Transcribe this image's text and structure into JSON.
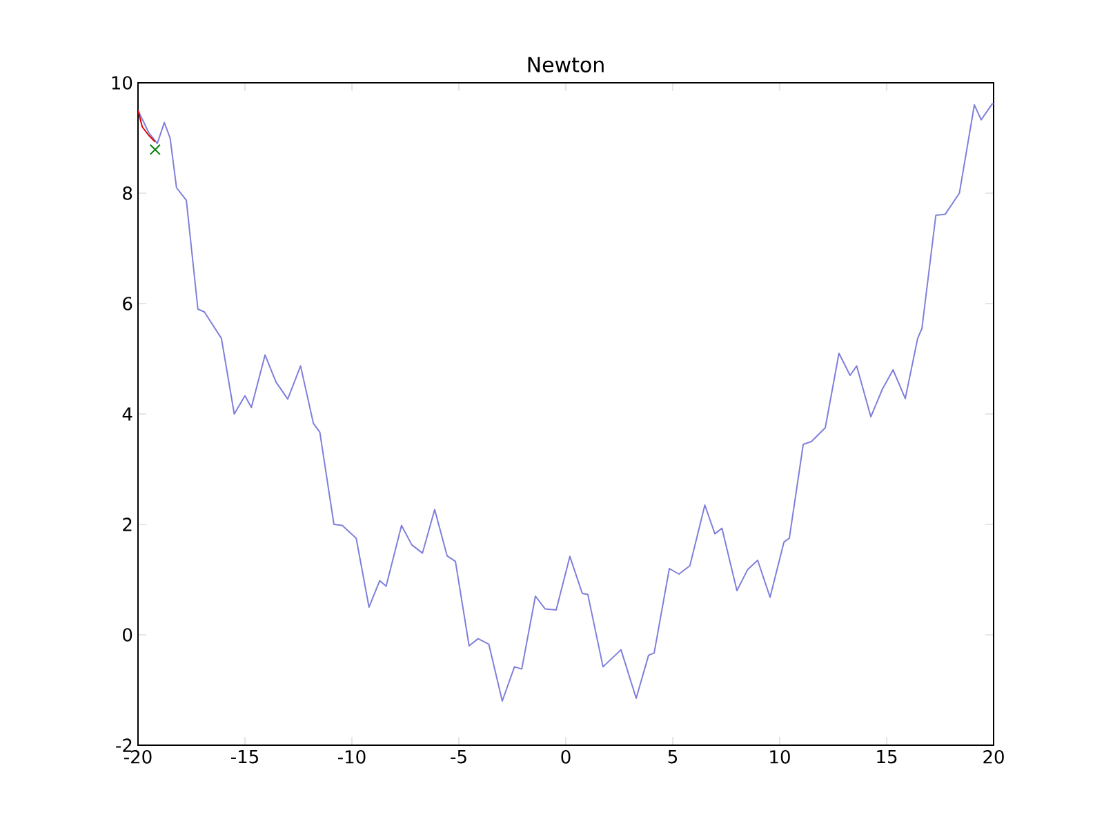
{
  "chart_data": {
    "type": "line",
    "title": "Newton",
    "xlim": [
      -20,
      20
    ],
    "ylim": [
      -2,
      10
    ],
    "xticks": [
      -20,
      -15,
      -10,
      -5,
      0,
      5,
      10,
      15,
      20
    ],
    "yticks": [
      -2,
      0,
      2,
      4,
      6,
      8,
      10
    ],
    "marker": "none",
    "line_style": "solid",
    "series": [
      {
        "color": "#7f7fdb",
        "x": [
          -20,
          -19.5,
          -19.1,
          -18.77,
          -18.5,
          -18.2,
          -17.74,
          -17.2,
          -16.9,
          -16.1,
          -15.5,
          -15.0,
          -14.7,
          -14.06,
          -13.55,
          -13.0,
          -12.4,
          -11.8,
          -11.5,
          -10.84,
          -10.45,
          -9.8,
          -9.2,
          -8.7,
          -8.4,
          -7.68,
          -7.2,
          -6.7,
          -6.13,
          -5.55,
          -5.16,
          -4.52,
          -4.1,
          -3.6,
          -2.97,
          -2.4,
          -2.06,
          -1.42,
          -0.97,
          -0.45,
          0.19,
          0.77,
          1.03,
          1.74,
          2.58,
          3.29,
          3.87,
          4.13,
          4.84,
          5.29,
          5.8,
          6.5,
          6.97,
          7.3,
          8.0,
          8.5,
          8.97,
          9.55,
          10.2,
          10.45,
          11.1,
          11.48,
          12.13,
          12.77,
          13.29,
          13.6,
          14.26,
          14.8,
          15.3,
          15.87,
          16.45,
          16.65,
          17.3,
          17.74,
          18.4,
          19.1,
          19.42,
          19.94,
          20
        ],
        "values": [
          9.5,
          9.1,
          8.9,
          9.28,
          9.0,
          8.1,
          7.87,
          5.9,
          5.85,
          5.37,
          4.0,
          4.33,
          4.12,
          5.07,
          4.58,
          4.27,
          4.87,
          3.83,
          3.67,
          2.0,
          1.98,
          1.75,
          0.5,
          0.98,
          0.88,
          1.98,
          1.63,
          1.48,
          2.27,
          1.43,
          1.33,
          -0.2,
          -0.07,
          -0.17,
          -1.2,
          -0.58,
          -0.62,
          0.7,
          0.47,
          0.45,
          1.42,
          0.75,
          0.73,
          -0.58,
          -0.27,
          -1.15,
          -0.37,
          -0.33,
          1.2,
          1.1,
          1.25,
          2.35,
          1.83,
          1.93,
          0.8,
          1.18,
          1.35,
          0.68,
          1.68,
          1.75,
          3.45,
          3.5,
          3.75,
          5.1,
          4.7,
          4.87,
          3.95,
          4.45,
          4.8,
          4.28,
          5.37,
          5.55,
          7.6,
          7.62,
          8.0,
          9.6,
          9.33,
          9.62,
          9.62
        ]
      },
      {
        "color": "#dd0000",
        "x": [
          -20,
          -19.8,
          -19.5,
          -19.2
        ],
        "values": [
          9.5,
          9.2,
          9.05,
          8.93
        ]
      },
      {
        "type": "scatter",
        "color": "#007f00",
        "marker": "cross",
        "x": [
          -19.2
        ],
        "values": [
          8.79
        ]
      }
    ]
  }
}
